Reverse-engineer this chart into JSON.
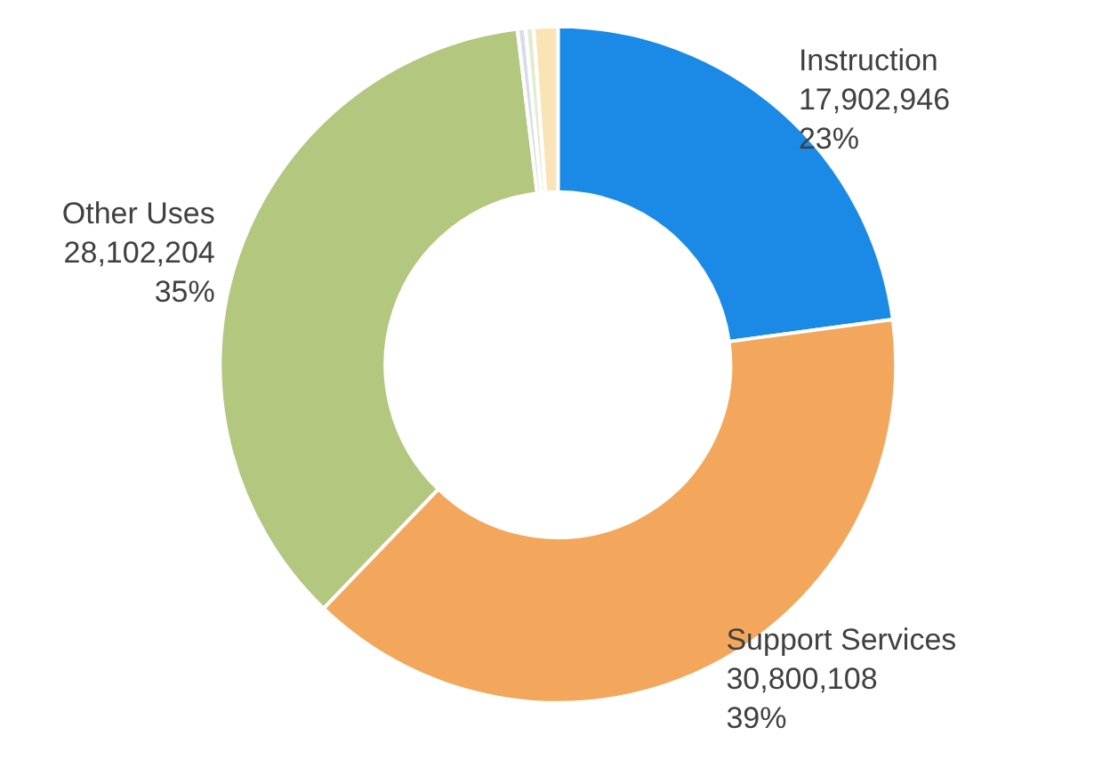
{
  "chart_data": {
    "type": "donut",
    "categories": [
      "Instruction",
      "Support Services",
      "Other Uses",
      null,
      null,
      null
    ],
    "values": [
      17902946,
      30800108,
      28102204,
      300000,
      300000,
      900000
    ],
    "colors": [
      "#1a8ae6",
      "#f2a75c",
      "#b3c77e",
      "#d8dde8",
      "#e2ecd0",
      "#fbe3b8"
    ],
    "value_labels": [
      "17,902,946\n23%",
      "30,800,108\n39%",
      "28,102,204\n35%",
      null,
      null,
      null
    ]
  }
}
